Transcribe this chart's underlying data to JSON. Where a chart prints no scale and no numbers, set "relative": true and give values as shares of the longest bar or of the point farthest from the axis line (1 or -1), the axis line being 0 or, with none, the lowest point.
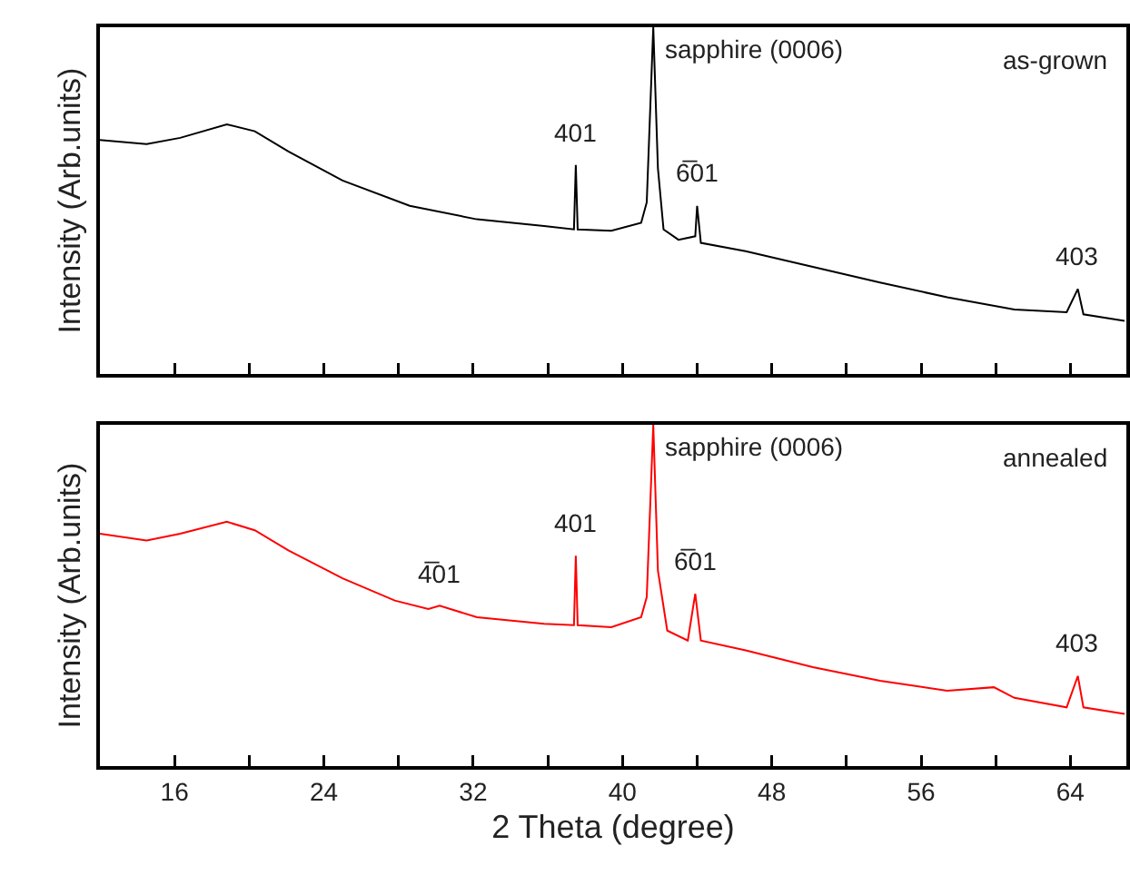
{
  "chart_data": [
    {
      "type": "line",
      "ylabel": "Intensity (Arb.units)",
      "relative": true,
      "xlim": [
        12,
        67
      ],
      "xticks": [
        {
          "value": 16,
          "label": null
        },
        {
          "value": 20,
          "label": null
        },
        {
          "value": 24,
          "label": null
        },
        {
          "value": 28,
          "label": null
        },
        {
          "value": 32,
          "label": null
        },
        {
          "value": 36,
          "label": null
        },
        {
          "value": 40,
          "label": null
        },
        {
          "value": 44,
          "label": null
        },
        {
          "value": 48,
          "label": null
        },
        {
          "value": 52,
          "label": null
        },
        {
          "value": 56,
          "label": null
        },
        {
          "value": 60,
          "label": null
        },
        {
          "value": 64,
          "label": null
        }
      ],
      "tick_labels": false,
      "grid": false,
      "marker": "none",
      "line_style": "solid",
      "x": [
        12.0,
        14.5,
        16.3,
        18.8,
        20.3,
        22.1,
        25.0,
        28.6,
        32.2,
        35.8,
        37.4,
        37.5,
        37.6,
        39.4,
        41.0,
        41.3,
        41.65,
        41.9,
        42.2,
        43.0,
        43.9,
        44.0,
        44.2,
        46.6,
        50.2,
        53.8,
        57.4,
        61.0,
        63.8,
        64.4,
        64.7,
        66.9
      ],
      "series": [
        {
          "color": "#000000",
          "values": [
            0.675,
            0.663,
            0.681,
            0.72,
            0.7,
            0.642,
            0.558,
            0.485,
            0.446,
            0.427,
            0.417,
            0.603,
            0.417,
            0.413,
            0.436,
            0.495,
            1.0,
            0.593,
            0.417,
            0.387,
            0.397,
            0.485,
            0.378,
            0.354,
            0.309,
            0.264,
            0.221,
            0.186,
            0.178,
            0.245,
            0.172,
            0.153
          ]
        }
      ],
      "annotations": [
        {
          "text": "401",
          "x": 37.5,
          "y": 0.603
        },
        {
          "text": "sapphire (0006)",
          "x": 41.65,
          "y": 1.0
        },
        {
          "text": "6̅01",
          "x": 44.0,
          "y": 0.485
        },
        {
          "text": "403",
          "x": 64.4,
          "y": 0.245
        },
        "as-grown"
      ]
    },
    {
      "type": "line",
      "xlabel": "2 Theta (degree)",
      "ylabel": "Intensity (Arb.units)",
      "relative": true,
      "xlim": [
        12,
        67
      ],
      "xticks": [
        16,
        {
          "value": 20,
          "label": null
        },
        24,
        {
          "value": 28,
          "label": null
        },
        32,
        {
          "value": 36,
          "label": null
        },
        40,
        {
          "value": 44,
          "label": null
        },
        48,
        {
          "value": 52,
          "label": null
        },
        56,
        {
          "value": 60,
          "label": null
        },
        64
      ],
      "tick_labels": "x",
      "grid": false,
      "marker": "none",
      "line_style": "solid",
      "x": [
        12.0,
        14.5,
        16.3,
        18.8,
        20.3,
        22.1,
        25.0,
        27.8,
        29.6,
        30.2,
        32.2,
        35.8,
        37.4,
        37.5,
        37.6,
        39.4,
        41.0,
        41.3,
        41.65,
        41.9,
        42.4,
        43.5,
        43.9,
        44.2,
        46.6,
        50.2,
        53.8,
        57.4,
        59.9,
        61.0,
        63.8,
        64.4,
        64.7,
        66.9
      ],
      "series": [
        {
          "color": "#ff0000",
          "values": [
            0.681,
            0.661,
            0.681,
            0.716,
            0.691,
            0.632,
            0.55,
            0.485,
            0.46,
            0.47,
            0.436,
            0.417,
            0.413,
            0.616,
            0.413,
            0.407,
            0.436,
            0.495,
            1.0,
            0.573,
            0.397,
            0.368,
            0.505,
            0.368,
            0.339,
            0.29,
            0.25,
            0.221,
            0.231,
            0.2,
            0.172,
            0.264,
            0.172,
            0.153
          ]
        }
      ],
      "annotations": [
        {
          "text": "4̅01",
          "x": 30.2,
          "y": 0.47
        },
        {
          "text": "401",
          "x": 37.5,
          "y": 0.616
        },
        {
          "text": "sapphire (0006)",
          "x": 41.65,
          "y": 1.0
        },
        {
          "text": "6̅01",
          "x": 43.9,
          "y": 0.505
        },
        {
          "text": "403",
          "x": 64.4,
          "y": 0.264
        },
        "annealed"
      ]
    }
  ]
}
